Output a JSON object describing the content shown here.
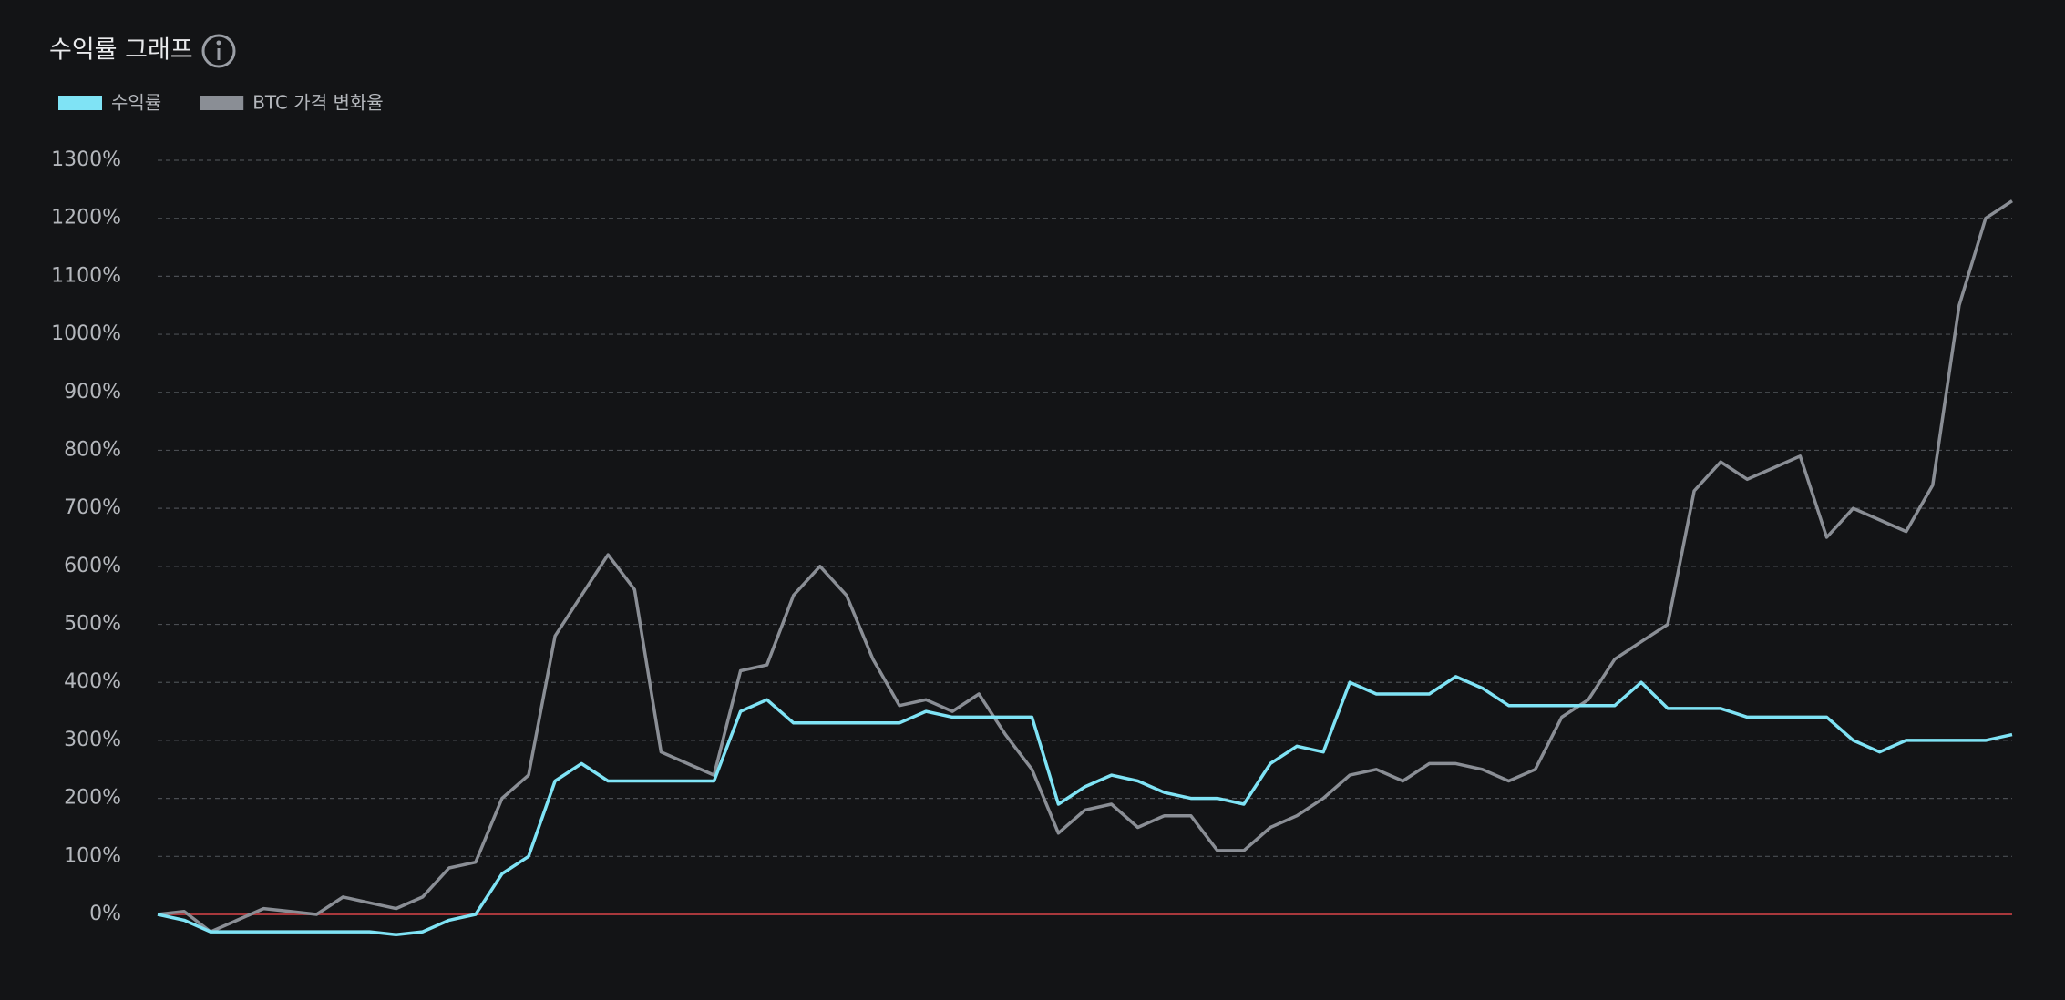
{
  "chart_data": {
    "type": "line",
    "title": "수익률 그래프",
    "series": [
      {
        "name": "수익률",
        "color": "#7fe3f5",
        "values": [
          0,
          -10,
          -30,
          -30,
          -30,
          -30,
          -30,
          -30,
          -30,
          -35,
          -30,
          -10,
          0,
          70,
          100,
          230,
          260,
          230,
          230,
          230,
          230,
          230,
          350,
          370,
          330,
          330,
          330,
          330,
          330,
          350,
          340,
          340,
          340,
          340,
          190,
          220,
          240,
          230,
          210,
          200,
          200,
          190,
          260,
          290,
          280,
          400,
          380,
          380,
          380,
          410,
          390,
          360,
          360,
          360,
          360,
          360,
          400,
          355,
          355,
          355,
          340,
          340,
          340,
          340,
          300,
          280,
          300,
          300,
          300,
          300,
          310
        ]
      },
      {
        "name": "BTC 가격 변화율",
        "color": "#8a8e95",
        "values": [
          0,
          5,
          -30,
          -10,
          10,
          5,
          0,
          30,
          20,
          10,
          30,
          80,
          90,
          200,
          240,
          480,
          550,
          620,
          560,
          280,
          260,
          240,
          420,
          430,
          550,
          600,
          550,
          440,
          360,
          370,
          350,
          380,
          310,
          250,
          140,
          180,
          190,
          150,
          170,
          170,
          110,
          110,
          150,
          170,
          200,
          240,
          250,
          230,
          260,
          260,
          250,
          230,
          250,
          340,
          370,
          440,
          470,
          500,
          730,
          780,
          750,
          770,
          790,
          650,
          700,
          680,
          660,
          740,
          1050,
          1200,
          1230
        ]
      }
    ],
    "ylim": [
      0,
      1300
    ],
    "yticks": [
      {
        "value": 0,
        "label": "0%"
      },
      {
        "value": 100,
        "label": "100%"
      },
      {
        "value": 200,
        "label": "200%"
      },
      {
        "value": 300,
        "label": "300%"
      },
      {
        "value": 400,
        "label": "400%"
      },
      {
        "value": 500,
        "label": "500%"
      },
      {
        "value": 600,
        "label": "600%"
      },
      {
        "value": 700,
        "label": "700%"
      },
      {
        "value": 800,
        "label": "800%"
      },
      {
        "value": 900,
        "label": "900%"
      },
      {
        "value": 1000,
        "label": "1000%"
      },
      {
        "value": 1100,
        "label": "1100%"
      },
      {
        "value": 1200,
        "label": "1200%"
      },
      {
        "value": 1300,
        "label": "1300%"
      }
    ],
    "grid": true,
    "zero_line_color": "#a8383c"
  }
}
